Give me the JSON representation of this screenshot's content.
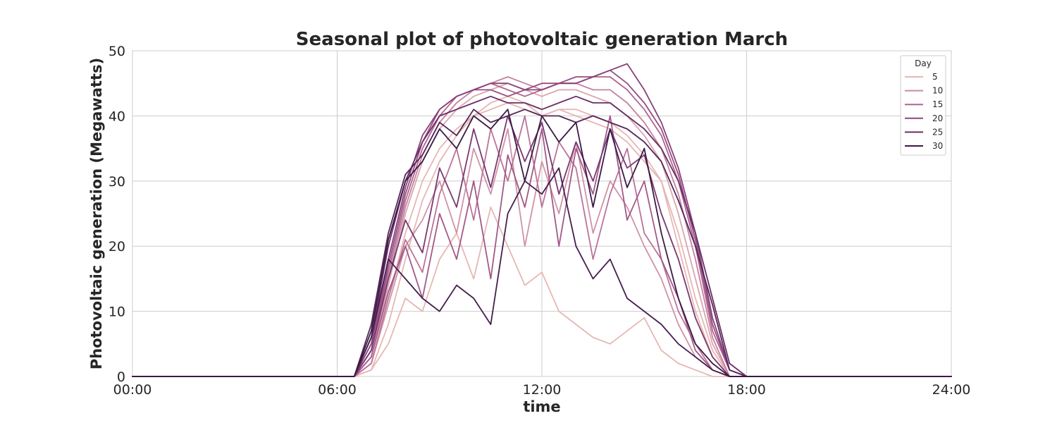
{
  "chart_data": {
    "type": "line",
    "title": "Seasonal plot of photovoltaic generation March",
    "xlabel": "time",
    "ylabel": "Photovoltaic generation (Megawatts)",
    "x_ticks": [
      "00:00",
      "06:00",
      "12:00",
      "18:00",
      "24:00"
    ],
    "y_ticks": [
      0,
      10,
      20,
      30,
      40,
      50
    ],
    "xlim_hours": [
      0,
      24
    ],
    "ylim": [
      0,
      50
    ],
    "grid": true,
    "legend": {
      "title": "Day",
      "placement": "top-right",
      "entries": [
        {
          "label": "5",
          "color": "#e6b7b4"
        },
        {
          "label": "10",
          "color": "#c98aa3"
        },
        {
          "label": "15",
          "color": "#b0648f"
        },
        {
          "label": "20",
          "color": "#8e477e"
        },
        {
          "label": "25",
          "color": "#6a2e66"
        },
        {
          "label": "30",
          "color": "#3b1a45"
        }
      ]
    },
    "x_hours": [
      0,
      0.5,
      1,
      1.5,
      2,
      2.5,
      3,
      3.5,
      4,
      4.5,
      5,
      5.5,
      6,
      6.5,
      7,
      7.5,
      8,
      8.5,
      9,
      9.5,
      10,
      10.5,
      11,
      11.5,
      12,
      12.5,
      13,
      13.5,
      14,
      14.5,
      15,
      15.5,
      16,
      16.5,
      17,
      17.5,
      18,
      18.5,
      19,
      19.5,
      20,
      20.5,
      21,
      21.5,
      22,
      22.5,
      23,
      23.5,
      24
    ],
    "series": [
      {
        "day": 1,
        "values": [
          0,
          0,
          0,
          0,
          0,
          0,
          0,
          0,
          0,
          0,
          0,
          0,
          0,
          0,
          2,
          12,
          22,
          30,
          35,
          38,
          40,
          41,
          42,
          41,
          40,
          41,
          40,
          39,
          38,
          36,
          33,
          30,
          20,
          10,
          3,
          0,
          0,
          0,
          0,
          0,
          0,
          0,
          0,
          0,
          0,
          0,
          0,
          0,
          0
        ]
      },
      {
        "day": 3,
        "values": [
          0,
          0,
          0,
          0,
          0,
          0,
          0,
          0,
          0,
          0,
          0,
          0,
          0,
          0,
          1,
          5,
          12,
          10,
          18,
          22,
          15,
          26,
          20,
          14,
          16,
          10,
          8,
          6,
          5,
          7,
          9,
          4,
          2,
          1,
          0,
          0,
          0,
          0,
          0,
          0,
          0,
          0,
          0,
          0,
          0,
          0,
          0,
          0,
          0
        ]
      },
      {
        "day": 5,
        "values": [
          0,
          0,
          0,
          0,
          0,
          0,
          0,
          0,
          0,
          0,
          0,
          0,
          0,
          0,
          1,
          8,
          18,
          27,
          33,
          37,
          40,
          42,
          43,
          42,
          40,
          41,
          41,
          40,
          39,
          37,
          34,
          30,
          22,
          12,
          4,
          0,
          0,
          0,
          0,
          0,
          0,
          0,
          0,
          0,
          0,
          0,
          0,
          0,
          0
        ]
      },
      {
        "day": 7,
        "values": [
          0,
          0,
          0,
          0,
          0,
          0,
          0,
          0,
          0,
          0,
          0,
          0,
          0,
          0,
          3,
          14,
          25,
          33,
          38,
          41,
          43,
          44,
          45,
          44,
          43,
          44,
          44,
          43,
          42,
          40,
          37,
          33,
          25,
          15,
          5,
          0,
          0,
          0,
          0,
          0,
          0,
          0,
          0,
          0,
          0,
          0,
          0,
          0,
          0
        ]
      },
      {
        "day": 9,
        "values": [
          0,
          0,
          0,
          0,
          0,
          0,
          0,
          0,
          0,
          0,
          0,
          0,
          0,
          0,
          2,
          11,
          20,
          24,
          30,
          22,
          35,
          28,
          38,
          20,
          33,
          25,
          36,
          22,
          30,
          26,
          20,
          15,
          8,
          3,
          1,
          0,
          0,
          0,
          0,
          0,
          0,
          0,
          0,
          0,
          0,
          0,
          0,
          0,
          0
        ]
      },
      {
        "day": 11,
        "values": [
          0,
          0,
          0,
          0,
          0,
          0,
          0,
          0,
          0,
          0,
          0,
          0,
          0,
          0,
          3,
          15,
          26,
          34,
          39,
          42,
          44,
          45,
          46,
          45,
          44,
          45,
          45,
          44,
          44,
          42,
          39,
          35,
          28,
          18,
          6,
          0,
          0,
          0,
          0,
          0,
          0,
          0,
          0,
          0,
          0,
          0,
          0,
          0,
          0
        ]
      },
      {
        "day": 13,
        "values": [
          0,
          0,
          0,
          0,
          0,
          0,
          0,
          0,
          0,
          0,
          0,
          0,
          0,
          0,
          2,
          12,
          21,
          16,
          28,
          35,
          24,
          38,
          30,
          40,
          26,
          36,
          32,
          18,
          28,
          35,
          22,
          18,
          10,
          5,
          1,
          0,
          0,
          0,
          0,
          0,
          0,
          0,
          0,
          0,
          0,
          0,
          0,
          0,
          0
        ]
      },
      {
        "day": 15,
        "values": [
          0,
          0,
          0,
          0,
          0,
          0,
          0,
          0,
          0,
          0,
          0,
          0,
          0,
          0,
          4,
          16,
          27,
          35,
          40,
          43,
          44,
          45,
          44,
          43,
          44,
          45,
          45,
          46,
          46,
          44,
          41,
          37,
          30,
          20,
          7,
          1,
          0,
          0,
          0,
          0,
          0,
          0,
          0,
          0,
          0,
          0,
          0,
          0,
          0
        ]
      },
      {
        "day": 17,
        "values": [
          0,
          0,
          0,
          0,
          0,
          0,
          0,
          0,
          0,
          0,
          0,
          0,
          0,
          0,
          3,
          13,
          20,
          12,
          25,
          18,
          30,
          15,
          34,
          26,
          38,
          20,
          35,
          28,
          40,
          24,
          30,
          18,
          12,
          4,
          1,
          0,
          0,
          0,
          0,
          0,
          0,
          0,
          0,
          0,
          0,
          0,
          0,
          0,
          0
        ]
      },
      {
        "day": 19,
        "values": [
          0,
          0,
          0,
          0,
          0,
          0,
          0,
          0,
          0,
          0,
          0,
          0,
          0,
          0,
          4,
          17,
          28,
          36,
          41,
          43,
          44,
          44,
          43,
          44,
          45,
          45,
          46,
          46,
          47,
          45,
          42,
          38,
          31,
          21,
          8,
          1,
          0,
          0,
          0,
          0,
          0,
          0,
          0,
          0,
          0,
          0,
          0,
          0,
          0
        ]
      },
      {
        "day": 21,
        "values": [
          0,
          0,
          0,
          0,
          0,
          0,
          0,
          0,
          0,
          0,
          0,
          0,
          0,
          0,
          5,
          18,
          29,
          37,
          41,
          43,
          44,
          45,
          45,
          44,
          44,
          45,
          45,
          46,
          47,
          48,
          44,
          39,
          32,
          22,
          9,
          1,
          0,
          0,
          0,
          0,
          0,
          0,
          0,
          0,
          0,
          0,
          0,
          0,
          0
        ]
      },
      {
        "day": 23,
        "values": [
          0,
          0,
          0,
          0,
          0,
          0,
          0,
          0,
          0,
          0,
          0,
          0,
          0,
          0,
          4,
          15,
          24,
          19,
          32,
          26,
          38,
          29,
          40,
          33,
          39,
          28,
          36,
          30,
          38,
          32,
          34,
          25,
          18,
          9,
          3,
          0,
          0,
          0,
          0,
          0,
          0,
          0,
          0,
          0,
          0,
          0,
          0,
          0,
          0
        ]
      },
      {
        "day": 25,
        "values": [
          0,
          0,
          0,
          0,
          0,
          0,
          0,
          0,
          0,
          0,
          0,
          0,
          0,
          0,
          6,
          20,
          30,
          36,
          40,
          41,
          42,
          43,
          42,
          42,
          41,
          42,
          43,
          42,
          42,
          40,
          38,
          35,
          30,
          22,
          12,
          2,
          0,
          0,
          0,
          0,
          0,
          0,
          0,
          0,
          0,
          0,
          0,
          0,
          0
        ]
      },
      {
        "day": 27,
        "values": [
          0,
          0,
          0,
          0,
          0,
          0,
          0,
          0,
          0,
          0,
          0,
          0,
          0,
          0,
          8,
          22,
          31,
          34,
          39,
          37,
          41,
          39,
          40,
          41,
          40,
          40,
          39,
          40,
          39,
          38,
          36,
          33,
          27,
          20,
          11,
          1,
          0,
          0,
          0,
          0,
          0,
          0,
          0,
          0,
          0,
          0,
          0,
          0,
          0
        ]
      },
      {
        "day": 29,
        "values": [
          0,
          0,
          0,
          0,
          0,
          0,
          0,
          0,
          0,
          0,
          0,
          0,
          0,
          0,
          6,
          18,
          15,
          12,
          10,
          14,
          12,
          8,
          25,
          30,
          28,
          32,
          20,
          15,
          18,
          12,
          10,
          8,
          5,
          3,
          1,
          0,
          0,
          0,
          0,
          0,
          0,
          0,
          0,
          0,
          0,
          0,
          0,
          0,
          0
        ]
      },
      {
        "day": 31,
        "values": [
          0,
          0,
          0,
          0,
          0,
          0,
          0,
          0,
          0,
          0,
          0,
          0,
          0,
          0,
          7,
          21,
          30,
          33,
          38,
          35,
          40,
          38,
          41,
          30,
          40,
          36,
          39,
          26,
          38,
          29,
          35,
          22,
          12,
          5,
          2,
          0,
          0,
          0,
          0,
          0,
          0,
          0,
          0,
          0,
          0,
          0,
          0,
          0,
          0
        ]
      }
    ]
  }
}
